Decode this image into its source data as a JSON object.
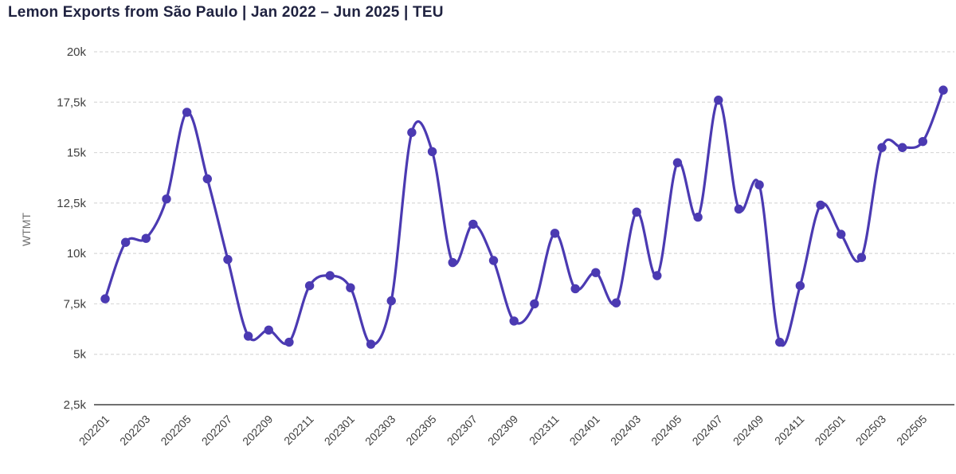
{
  "title": "Lemon Exports from São Paulo | Jan 2022 – Jun 2025 | TEU",
  "colors": {
    "line": "#4b3ab2",
    "title_text": "#1f2240",
    "axis_line": "#404040",
    "gridline": "#d9d9d9",
    "tick_text": "#3f3f3f",
    "axis_title_text": "#6e6e6e",
    "background": "#ffffff"
  },
  "chart_data": {
    "type": "line",
    "title": "Lemon Exports from São Paulo | Jan 2022 – Jun 2025 | TEU",
    "xlabel": "",
    "ylabel": "WTMT",
    "legend_position": "none",
    "grid": "horizontal-dashed",
    "marker": "circle",
    "ylim": [
      2500,
      20000
    ],
    "y_ticks": [
      2500,
      5000,
      7500,
      10000,
      12500,
      15000,
      17500,
      20000
    ],
    "y_tick_labels": [
      "2,5k",
      "5k",
      "7,5k",
      "10k",
      "12,5k",
      "15k",
      "17,5k",
      "20k"
    ],
    "x": [
      "202201",
      "202202",
      "202203",
      "202204",
      "202205",
      "202206",
      "202207",
      "202208",
      "202209",
      "202210",
      "202211",
      "202212",
      "202301",
      "202302",
      "202303",
      "202304",
      "202305",
      "202306",
      "202307",
      "202308",
      "202309",
      "202310",
      "202311",
      "202312",
      "202401",
      "202402",
      "202403",
      "202404",
      "202405",
      "202406",
      "202407",
      "202408",
      "202409",
      "202410",
      "202411",
      "202412",
      "202501",
      "202502",
      "202503",
      "202504",
      "202505",
      "202506"
    ],
    "x_tick_labels": [
      "202201",
      "202203",
      "202205",
      "202207",
      "202209",
      "202211",
      "202301",
      "202303",
      "202305",
      "202307",
      "202309",
      "202311",
      "202401",
      "202403",
      "202405",
      "202407",
      "202409",
      "202411",
      "202501",
      "202503",
      "202505"
    ],
    "values": [
      7750,
      10550,
      10750,
      12700,
      17000,
      13700,
      9700,
      5900,
      6200,
      5600,
      8400,
      8900,
      8300,
      5500,
      7650,
      16000,
      15050,
      9550,
      11450,
      9650,
      6650,
      7500,
      11000,
      8250,
      9050,
      7550,
      12050,
      8900,
      14500,
      11800,
      17600,
      12200,
      13400,
      5600,
      8400,
      12400,
      10950,
      9800,
      15250,
      15250,
      15550,
      18100
    ]
  }
}
